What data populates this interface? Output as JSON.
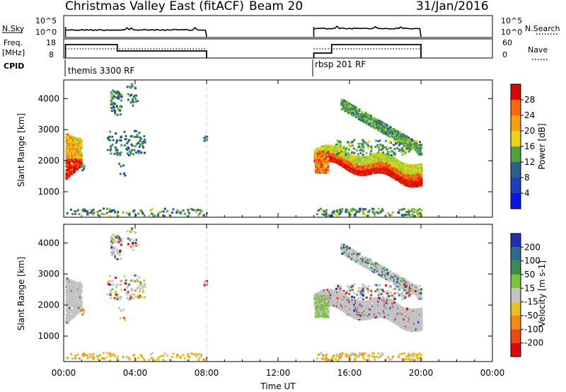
{
  "header": {
    "station": "Christmas Valley East (fitACF)",
    "beam": "Beam 20",
    "date": "31/Jan/2016"
  },
  "strips": {
    "nsky_label": "N.Sky",
    "nsky_ticks": [
      "10^5",
      "10^0"
    ],
    "nsearch_label": "N.Search",
    "nsearch_ticks": [
      "10^5",
      "10^0"
    ],
    "freq_label_1": "Freq.",
    "freq_label_2": "[MHz]",
    "freq_ticks": [
      "18",
      "8"
    ],
    "nave_label": "Nave",
    "nave_ticks": [
      "60",
      "0"
    ],
    "cpid_label": "CPID",
    "cpid_segments": [
      {
        "label": "themis 3300 RF",
        "start_h": 0.1,
        "end_h": 8.0
      },
      {
        "label": "rbsp 201 RF",
        "start_h": 14.0,
        "end_h": 20.0
      }
    ]
  },
  "panels": {
    "y_axis_label": "Slant Range [km]",
    "x_axis_label": "Time UT",
    "power_cbar_label": "Power [dB]",
    "velocity_cbar_label": "Velocity [m s-1]"
  },
  "colors": {
    "power": [
      "#0a14e6",
      "#1f3fb4",
      "#2c5d8c",
      "#3a7f5a",
      "#4fa044",
      "#8cc83c",
      "#e8d21e",
      "#f5a014",
      "#f46a10",
      "#e62a0c",
      "#d40a0a"
    ],
    "velocity_pos": [
      "#2030b0",
      "#2e6a8a",
      "#3c8c50",
      "#7cc240"
    ],
    "velocity_neutral": "#c3c3c3",
    "velocity_neg": [
      "#e8c020",
      "#f08a1a",
      "#ec4a14",
      "#dc0a0a"
    ]
  },
  "chart_data": [
    {
      "type": "heatmap",
      "title": "Power",
      "xlabel": "Time UT",
      "ylabel": "Slant Range [km]",
      "x_ticks": [
        "00:00",
        "04:00",
        "08:00",
        "12:00",
        "16:00",
        "20:00",
        "00:00"
      ],
      "xlim_hours": [
        0,
        24
      ],
      "y_ticks": [
        1000,
        2000,
        3000,
        4000
      ],
      "ylim_km": [
        180,
        4600
      ],
      "colorbar": {
        "label": "Power [dB]",
        "range": [
          0,
          32
        ],
        "ticks": [
          4,
          8,
          12,
          16,
          20,
          24,
          28
        ]
      },
      "observation_windows_h": [
        [
          0.1,
          8.0
        ],
        [
          14.0,
          20.0
        ]
      ],
      "echo_regions": [
        {
          "t_start_h": 0.1,
          "t_end_h": 0.9,
          "r_start_km": 1500,
          "r_end_km": 2900,
          "power_db": "8-30"
        },
        {
          "t_start_h": 2.5,
          "t_end_h": 4.0,
          "r_start_km": 3600,
          "r_end_km": 4400,
          "power_db": "4-12"
        },
        {
          "t_start_h": 2.3,
          "t_end_h": 4.5,
          "r_start_km": 2200,
          "r_end_km": 3000,
          "power_db": "4-10"
        },
        {
          "t_start_h": 14.0,
          "t_end_h": 20.0,
          "r_start_km": 1100,
          "r_end_km": 2400,
          "power_db": "8-30"
        },
        {
          "t_start_h": 15.5,
          "t_end_h": 20.0,
          "r_start_km": 2500,
          "r_end_km": 4000,
          "power_db": "4-16"
        },
        {
          "t_start_h": 0.1,
          "t_end_h": 20.0,
          "r_start_km": 180,
          "r_end_km": 450,
          "power_db": "4-16"
        }
      ]
    },
    {
      "type": "heatmap",
      "title": "Velocity",
      "xlabel": "Time UT",
      "ylabel": "Slant Range [km]",
      "x_ticks": [
        "00:00",
        "04:00",
        "08:00",
        "12:00",
        "16:00",
        "20:00",
        "00:00"
      ],
      "xlim_hours": [
        0,
        24
      ],
      "y_ticks": [
        1000,
        2000,
        3000,
        4000
      ],
      "ylim_km": [
        180,
        4600
      ],
      "colorbar": {
        "label": "Velocity [m s-1]",
        "ticks": [
          200,
          100,
          50,
          15,
          -15,
          -50,
          -100,
          -200
        ]
      },
      "observation_windows_h": [
        [
          0.1,
          8.0
        ],
        [
          14.0,
          20.0
        ]
      ],
      "echo_regions": [
        {
          "t_start_h": 0.1,
          "t_end_h": 0.9,
          "r_start_km": 1500,
          "r_end_km": 2900,
          "velocity_ms": "-15 to 15"
        },
        {
          "t_start_h": 14.0,
          "t_end_h": 20.0,
          "r_start_km": 1100,
          "r_end_km": 2400,
          "velocity_ms": "-15 to 15"
        },
        {
          "t_start_h": 15.0,
          "t_end_h": 15.6,
          "r_start_km": 1600,
          "r_end_km": 2300,
          "velocity_ms": "50 to 100"
        },
        {
          "t_start_h": 0.1,
          "t_end_h": 20.0,
          "r_start_km": 180,
          "r_end_km": 450,
          "velocity_ms": "-100 to -15"
        }
      ]
    }
  ]
}
